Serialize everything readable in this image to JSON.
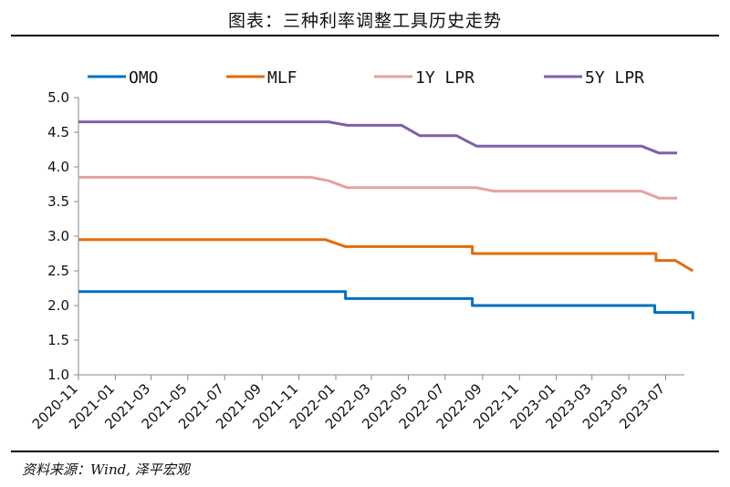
{
  "header": {
    "title": "图表：三种利率调整工具历史走势"
  },
  "footer": {
    "source": "资料来源：Wind, 泽平宏观"
  },
  "chart_data": {
    "type": "line",
    "title": "图表：三种利率调整工具历史走势",
    "xlabel": "",
    "ylabel": "",
    "ylim": [
      1.0,
      5.0
    ],
    "yticks": [
      "1.0",
      "1.5",
      "2.0",
      "2.5",
      "3.0",
      "3.5",
      "4.0",
      "4.5",
      "5.0"
    ],
    "xlim": [
      "2020-11",
      "2023-08"
    ],
    "xticks": [
      "2020-11",
      "2021-01",
      "2021-03",
      "2021-05",
      "2021-07",
      "2021-09",
      "2021-11",
      "2022-01",
      "2022-03",
      "2022-05",
      "2022-07",
      "2022-09",
      "2022-11",
      "2023-01",
      "2023-03",
      "2023-05",
      "2023-07"
    ],
    "grid": false,
    "legend_position": "top",
    "series": [
      {
        "name": "OMO",
        "color": "#0070C0",
        "points": [
          [
            "2020-11-01",
            2.2
          ],
          [
            "2022-01-17",
            2.2
          ],
          [
            "2022-01-17",
            2.1
          ],
          [
            "2022-08-15",
            2.1
          ],
          [
            "2022-08-15",
            2.0
          ],
          [
            "2023-06-13",
            2.0
          ],
          [
            "2023-06-13",
            1.9
          ],
          [
            "2023-08-15",
            1.9
          ],
          [
            "2023-08-15",
            1.8
          ]
        ]
      },
      {
        "name": "MLF",
        "color": "#E36C09",
        "points": [
          [
            "2020-11-01",
            2.95
          ],
          [
            "2021-12-15",
            2.95
          ],
          [
            "2022-01-17",
            2.85
          ],
          [
            "2022-08-15",
            2.85
          ],
          [
            "2022-08-15",
            2.75
          ],
          [
            "2023-06-15",
            2.75
          ],
          [
            "2023-06-15",
            2.65
          ],
          [
            "2023-07-17",
            2.65
          ],
          [
            "2023-08-15",
            2.5
          ]
        ]
      },
      {
        "name": "1Y LPR",
        "color": "#E6A1A1",
        "points": [
          [
            "2020-11-01",
            3.85
          ],
          [
            "2021-11-20",
            3.85
          ],
          [
            "2021-12-20",
            3.8
          ],
          [
            "2022-01-20",
            3.7
          ],
          [
            "2022-08-22",
            3.7
          ],
          [
            "2022-09-20",
            3.65
          ],
          [
            "2023-05-22",
            3.65
          ],
          [
            "2023-06-20",
            3.55
          ],
          [
            "2023-07-20",
            3.55
          ]
        ]
      },
      {
        "name": "5Y LPR",
        "color": "#7F60A8",
        "points": [
          [
            "2020-11-01",
            4.65
          ],
          [
            "2021-12-20",
            4.65
          ],
          [
            "2022-01-20",
            4.6
          ],
          [
            "2022-04-20",
            4.6
          ],
          [
            "2022-05-20",
            4.45
          ],
          [
            "2022-07-20",
            4.45
          ],
          [
            "2022-08-22",
            4.3
          ],
          [
            "2023-05-22",
            4.3
          ],
          [
            "2023-06-20",
            4.2
          ],
          [
            "2023-07-20",
            4.2
          ]
        ]
      }
    ]
  }
}
